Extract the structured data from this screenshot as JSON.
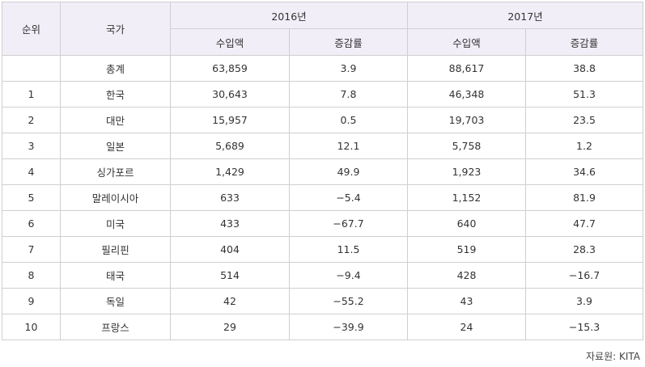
{
  "header": {
    "rank": "순위",
    "country": "국가",
    "year1": "2016년",
    "year2": "2017년",
    "import_amount": "수입액",
    "growth_rate": "증감률"
  },
  "rows": [
    {
      "rank": "",
      "country": "총계",
      "v2016": "63,859",
      "g2016": "3.9",
      "v2017": "88,617",
      "g2017": "38.8"
    },
    {
      "rank": "1",
      "country": "한국",
      "v2016": "30,643",
      "g2016": "7.8",
      "v2017": "46,348",
      "g2017": "51.3"
    },
    {
      "rank": "2",
      "country": "대만",
      "v2016": "15,957",
      "g2016": "0.5",
      "v2017": "19,703",
      "g2017": "23.5"
    },
    {
      "rank": "3",
      "country": "일본",
      "v2016": "5,689",
      "g2016": "12.1",
      "v2017": "5,758",
      "g2017": "1.2"
    },
    {
      "rank": "4",
      "country": "싱가포르",
      "v2016": "1,429",
      "g2016": "49.9",
      "v2017": "1,923",
      "g2017": "34.6"
    },
    {
      "rank": "5",
      "country": "말레이시아",
      "v2016": "633",
      "g2016": "−5.4",
      "v2017": "1,152",
      "g2017": "81.9"
    },
    {
      "rank": "6",
      "country": "미국",
      "v2016": "433",
      "g2016": "−67.7",
      "v2017": "640",
      "g2017": "47.7"
    },
    {
      "rank": "7",
      "country": "필리핀",
      "v2016": "404",
      "g2016": "11.5",
      "v2017": "519",
      "g2017": "28.3"
    },
    {
      "rank": "8",
      "country": "태국",
      "v2016": "514",
      "g2016": "−9.4",
      "v2017": "428",
      "g2017": "−16.7"
    },
    {
      "rank": "9",
      "country": "독일",
      "v2016": "42",
      "g2016": "−55.2",
      "v2017": "43",
      "g2017": "3.9"
    },
    {
      "rank": "10",
      "country": "프랑스",
      "v2016": "29",
      "g2016": "−39.9",
      "v2017": "24",
      "g2017": "−15.3"
    }
  ],
  "source": "자료원: KITA"
}
